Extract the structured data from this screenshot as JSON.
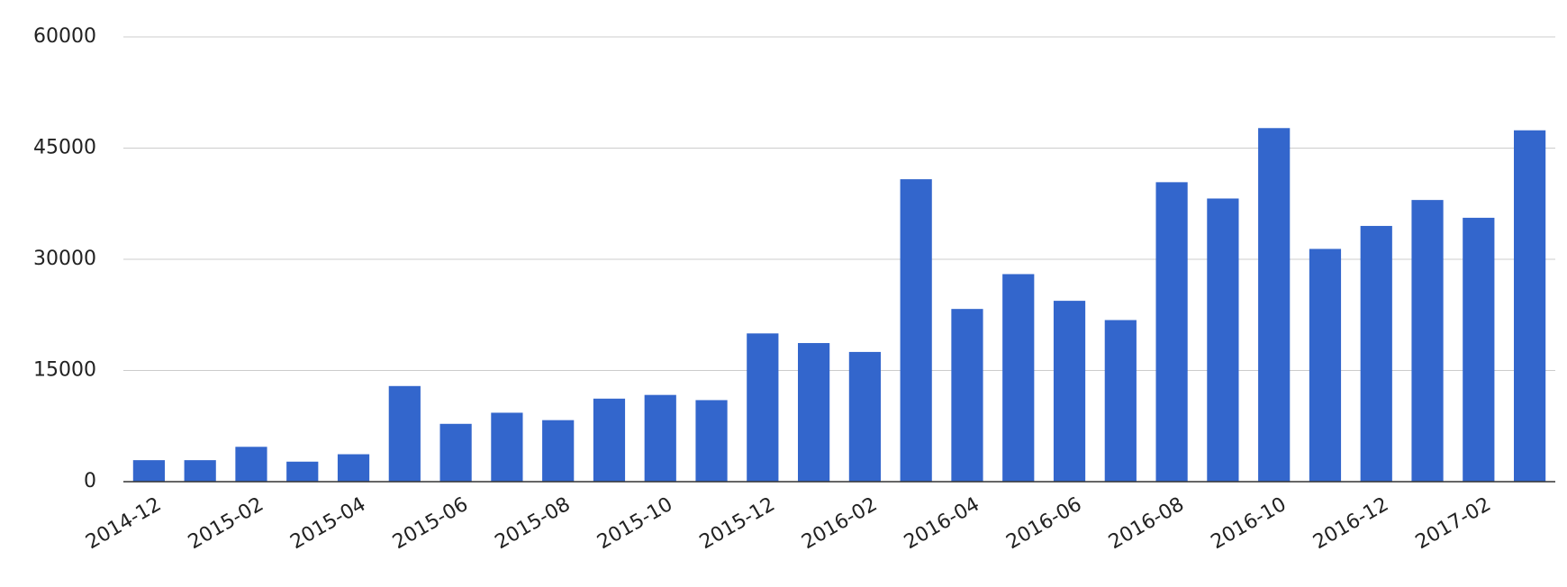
{
  "chart_data": {
    "type": "bar",
    "categories": [
      "2014-12",
      null,
      "2015-02",
      null,
      "2015-04",
      null,
      "2015-06",
      null,
      "2015-08",
      null,
      "2015-10",
      null,
      "2015-12",
      null,
      "2016-02",
      null,
      "2016-04",
      null,
      "2016-06",
      null,
      "2016-08",
      null,
      "2016-10",
      null,
      "2016-12",
      null,
      "2017-02",
      null
    ],
    "values": [
      2900,
      2900,
      4700,
      2700,
      3700,
      12900,
      7800,
      9300,
      8300,
      11200,
      11700,
      11000,
      20000,
      18700,
      17500,
      40800,
      23300,
      28000,
      24400,
      21800,
      40400,
      38200,
      47700,
      31400,
      34500,
      38000,
      35600,
      47400
    ],
    "color": "#3366cc",
    "ylim": [
      0,
      60000
    ],
    "yticks": [
      0,
      15000,
      30000,
      45000,
      60000
    ],
    "grid": true
  }
}
